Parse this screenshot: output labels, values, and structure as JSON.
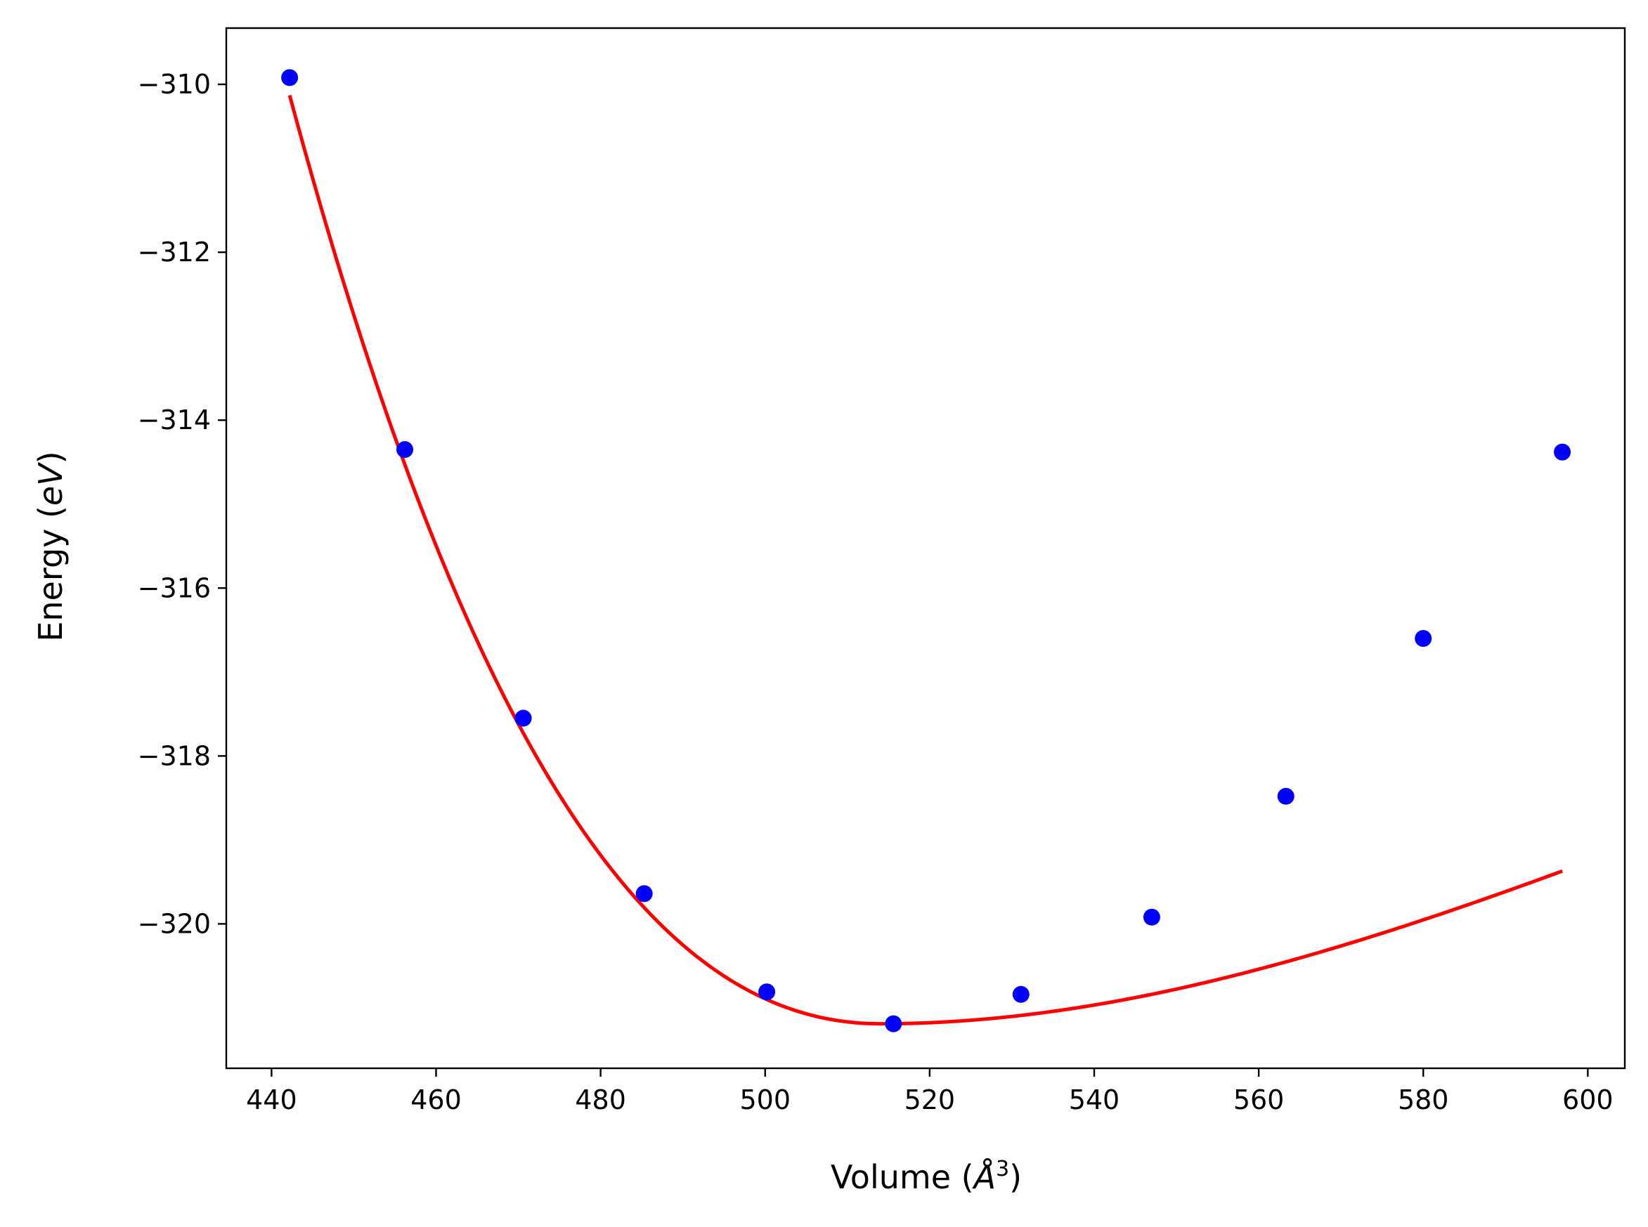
{
  "chart_data": {
    "type": "scatter",
    "xlabel": {
      "text": "Volume (",
      "symbol": "Å",
      "superscript": "3",
      "close": ")"
    },
    "ylabel": {
      "text": "Energy (",
      "unit": "eV",
      "close": ")"
    },
    "xlim": [
      434.5,
      604.5
    ],
    "ylim": [
      -321.72,
      -309.33
    ],
    "xticks": [
      440,
      460,
      480,
      500,
      520,
      540,
      560,
      580,
      600
    ],
    "xtick_labels": [
      "440",
      "460",
      "480",
      "500",
      "520",
      "540",
      "560",
      "580",
      "600"
    ],
    "yticks": [
      -310,
      -312,
      -314,
      -316,
      -318,
      -320
    ],
    "ytick_labels": [
      "−310",
      "−312",
      "−314",
      "−316",
      "−318",
      "−320"
    ],
    "grid": false,
    "series": [
      {
        "kind": "points",
        "color": "#0000ff",
        "x": [
          442.2,
          456.2,
          470.6,
          485.3,
          500.2,
          515.6,
          531.1,
          547.0,
          563.3,
          580.0,
          596.9
        ],
        "y": [
          -309.92,
          -314.35,
          -317.55,
          -319.64,
          -320.81,
          -321.19,
          -320.84,
          -319.92,
          -318.48,
          -316.6,
          -314.38
        ]
      },
      {
        "kind": "fit-curve",
        "color": "#ff0000",
        "x_range": [
          442.2,
          596.9
        ],
        "min_x": 514.0,
        "min_y": -321.19,
        "b_left": 0.00137,
        "c_left": 1.08e-05,
        "b_right": 0.00036,
        "c_right": -1.15e-06
      }
    ]
  }
}
